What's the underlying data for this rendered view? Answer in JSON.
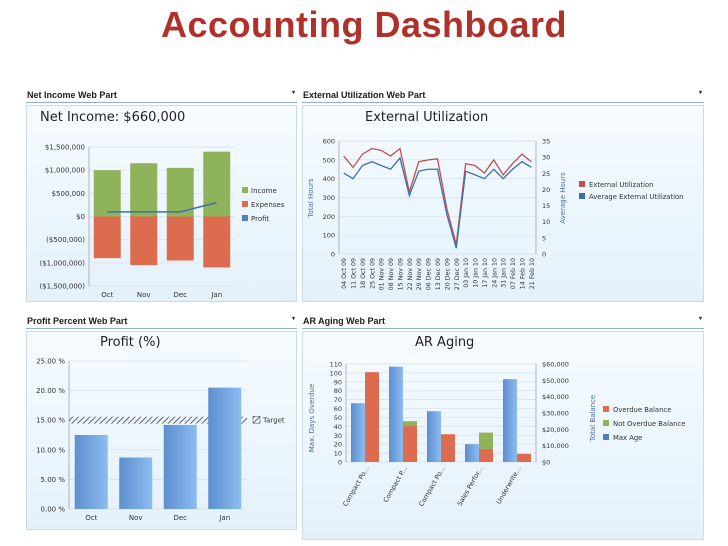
{
  "page": {
    "title": "Accounting Dashboard"
  },
  "parts": {
    "net_income": {
      "header": "Net Income Web Part",
      "heading": "Net Income:  $660,000"
    },
    "external_util": {
      "header": "External Utilization Web Part",
      "heading": "External Utilization"
    },
    "profit_percent": {
      "header": "Profit Percent Web Part",
      "heading": "Profit (%)"
    },
    "ar_aging": {
      "header": "AR Aging Web Part",
      "heading": "AR Aging"
    }
  },
  "colors": {
    "green": "#8fb35a",
    "red": "#dd6c4e",
    "blue": "#4f7fc0",
    "line_red": "#c0504d",
    "line_blue": "#3f6fa8",
    "title": "#b0302a",
    "grid": "#d5dde5"
  },
  "icons": {
    "dropdown": "▾"
  },
  "chart_data": [
    {
      "type": "bar",
      "categories": [
        "Oct",
        "Nov",
        "Dec",
        "Jan"
      ],
      "series": [
        {
          "name": "Income",
          "values": [
            1000000,
            1150000,
            1050000,
            1400000
          ]
        },
        {
          "name": "Expenses",
          "values": [
            -900000,
            -1050000,
            -950000,
            -1100000
          ]
        },
        {
          "name": "Profit",
          "type": "line",
          "values": [
            100000,
            100000,
            100000,
            300000
          ]
        }
      ],
      "ylim": [
        -1500000,
        1500000
      ],
      "yticks": [
        "$1,500,000",
        "$1,000,000",
        "$500,000",
        "$0",
        "($500,000)",
        "($1,000,000)",
        "($1,500,000)"
      ],
      "legend_position": "right"
    },
    {
      "type": "line",
      "x": [
        "04 Oct 09",
        "11 Oct 09",
        "18 Oct 09",
        "25 Oct 09",
        "01 Nov 09",
        "08 Nov 09",
        "15 Nov 09",
        "22 Nov 09",
        "29 Nov 09",
        "06 Dec 09",
        "13 Dec 09",
        "20 Dec 09",
        "27 Dec 09",
        "03 Jan 10",
        "10 Jan 10",
        "17 Jan 10",
        "24 Jan 10",
        "31 Jan 10",
        "07 Feb 10",
        "14 Feb 10",
        "21 Feb 10"
      ],
      "series": [
        {
          "name": "External Utilization",
          "axis": "left",
          "values": [
            520,
            460,
            530,
            560,
            550,
            520,
            560,
            330,
            490,
            500,
            505,
            240,
            50,
            480,
            470,
            430,
            500,
            420,
            480,
            530,
            490
          ]
        },
        {
          "name": "Average External Utilization",
          "axis": "right",
          "values": [
            430,
            400,
            470,
            490,
            470,
            450,
            510,
            310,
            440,
            450,
            450,
            210,
            30,
            440,
            420,
            400,
            450,
            400,
            450,
            490,
            460
          ]
        }
      ],
      "ylabel": "Total Hours",
      "ylim": [
        0,
        600
      ],
      "yticks": [
        "0",
        "100",
        "200",
        "300",
        "400",
        "500",
        "600"
      ],
      "y2label": "Average Hours",
      "y2lim": [
        0,
        35
      ],
      "y2ticks": [
        "0",
        "5",
        "10",
        "15",
        "20",
        "25",
        "30",
        "35"
      ],
      "legend_position": "right"
    },
    {
      "type": "bar",
      "categories": [
        "Oct",
        "Nov",
        "Dec",
        "Jan"
      ],
      "series": [
        {
          "name": "Profit",
          "values": [
            12.5,
            8.7,
            14.2,
            20.5
          ]
        }
      ],
      "target": {
        "name": "Target",
        "value": 15
      },
      "ylim": [
        0,
        25
      ],
      "yticks": [
        "0.00 %",
        "5.00 %",
        "10.00 %",
        "15.00 %",
        "20.00 %",
        "25.00 %"
      ],
      "legend_position": "right"
    },
    {
      "type": "bar",
      "categories": [
        "Compact Po...",
        "Compact P...",
        "Compact Po...",
        "Sales Perfor...",
        "Underwrite..."
      ],
      "series": [
        {
          "name": "Overdue Balance",
          "values": [
            55000,
            22000,
            17000,
            8000,
            5000
          ]
        },
        {
          "name": "Not Overdue Balance",
          "values": [
            0,
            3000,
            0,
            10000,
            0
          ]
        },
        {
          "name": "Max Age",
          "axis": "left",
          "values": [
            66,
            107,
            57,
            20,
            93
          ]
        }
      ],
      "ylabel": "Max. Days Overdue",
      "ylim": [
        0,
        110
      ],
      "yticks": [
        "0",
        "10",
        "20",
        "30",
        "40",
        "50",
        "60",
        "70",
        "80",
        "90",
        "100",
        "110"
      ],
      "y2label": "Total Balance",
      "y2lim": [
        0,
        60000
      ],
      "y2ticks": [
        "$0",
        "$10,000",
        "$20,000",
        "$30,000",
        "$40,000",
        "$50,000",
        "$60,000"
      ],
      "legend_position": "right"
    }
  ]
}
